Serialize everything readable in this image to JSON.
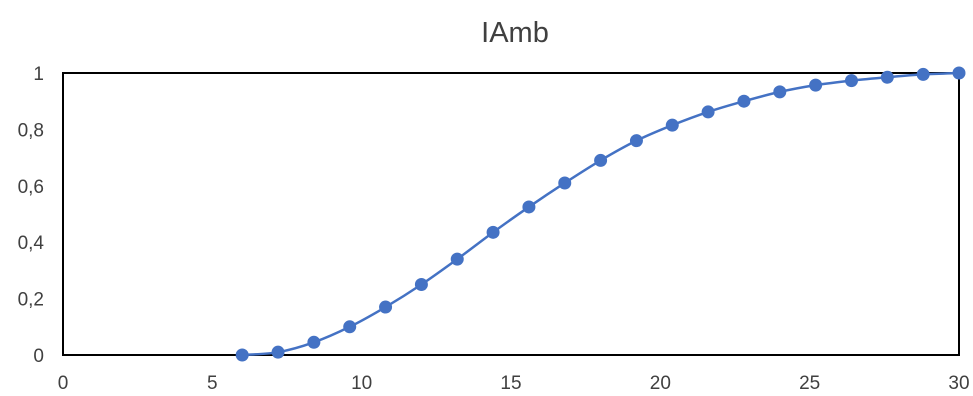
{
  "chart_data": {
    "type": "line",
    "title": "IAmb",
    "xlabel": "",
    "ylabel": "",
    "xlim": [
      0,
      30
    ],
    "ylim": [
      0,
      1
    ],
    "x_ticks": [
      0,
      5,
      10,
      15,
      20,
      25,
      30
    ],
    "y_ticks": [
      0,
      0.2,
      0.4,
      0.6,
      0.8,
      1
    ],
    "x_tick_labels": [
      "0",
      "5",
      "10",
      "15",
      "20",
      "25",
      "30"
    ],
    "y_tick_labels": [
      "0",
      "0,2",
      "0,4",
      "0,6",
      "0,8",
      "1"
    ],
    "grid": false,
    "legend": "none",
    "series": [
      {
        "color": "#4472C4",
        "marker": "circle",
        "x": [
          6,
          7.2,
          8.4,
          9.6,
          10.8,
          12,
          13.2,
          14.4,
          15.6,
          16.8,
          18,
          19.2,
          20.4,
          21.6,
          22.8,
          24,
          25.2,
          26.4,
          27.6,
          28.8,
          30
        ],
        "y": [
          0,
          0.01,
          0.045,
          0.1,
          0.17,
          0.25,
          0.34,
          0.435,
          0.525,
          0.61,
          0.69,
          0.76,
          0.815,
          0.862,
          0.9,
          0.933,
          0.957,
          0.973,
          0.985,
          0.995,
          1.0
        ]
      }
    ]
  }
}
